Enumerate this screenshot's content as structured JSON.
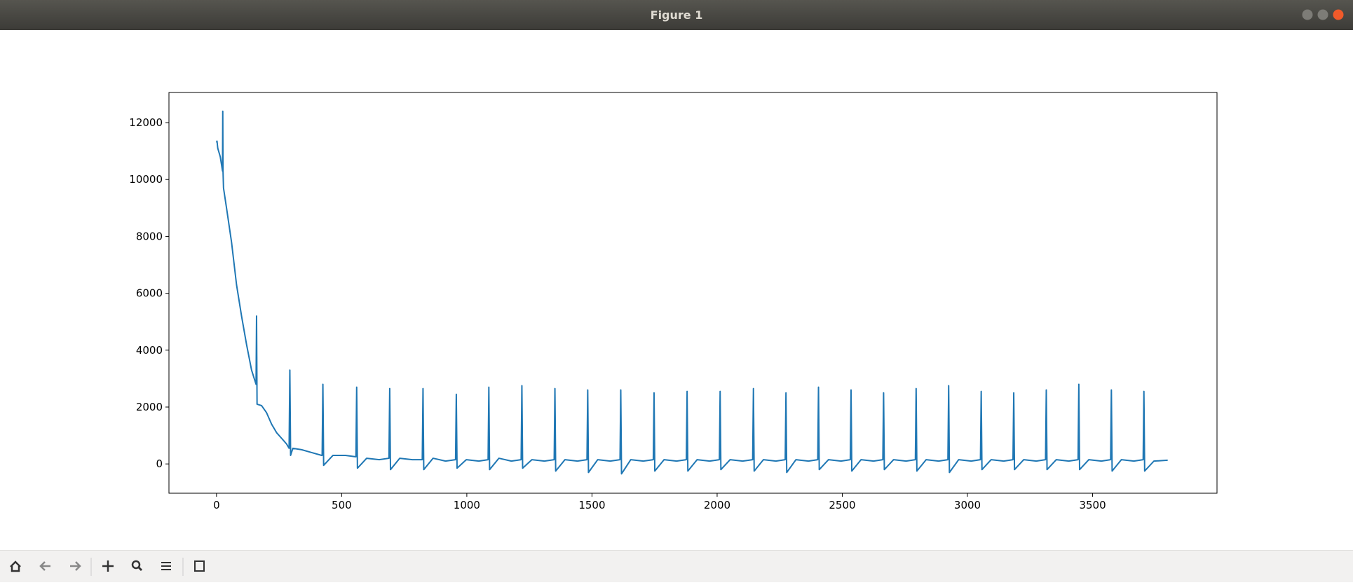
{
  "window": {
    "title": "Figure 1"
  },
  "chart_data": {
    "type": "line",
    "x": [
      0,
      2,
      5,
      15,
      24,
      25,
      26,
      28,
      40,
      60,
      80,
      100,
      120,
      140,
      158,
      160,
      162,
      180,
      200,
      220,
      240,
      260,
      280,
      290,
      293,
      296,
      305,
      340,
      380,
      420,
      422,
      425,
      428,
      465,
      515,
      557,
      560,
      563,
      600,
      650,
      689,
      692,
      695,
      732,
      782,
      822,
      825,
      828,
      865,
      915,
      955,
      958,
      961,
      998,
      1048,
      1085,
      1088,
      1091,
      1128,
      1178,
      1217,
      1220,
      1223,
      1260,
      1310,
      1349,
      1352,
      1355,
      1392,
      1442,
      1480,
      1483,
      1486,
      1523,
      1573,
      1612,
      1615,
      1618,
      1655,
      1705,
      1745,
      1748,
      1751,
      1788,
      1838,
      1877,
      1880,
      1883,
      1920,
      1970,
      2009,
      2012,
      2015,
      2052,
      2102,
      2142,
      2145,
      2148,
      2185,
      2235,
      2272,
      2275,
      2278,
      2315,
      2365,
      2402,
      2405,
      2408,
      2445,
      2495,
      2532,
      2535,
      2538,
      2575,
      2625,
      2662,
      2665,
      2668,
      2705,
      2755,
      2792,
      2795,
      2798,
      2835,
      2885,
      2922,
      2925,
      2928,
      2965,
      3015,
      3052,
      3055,
      3058,
      3095,
      3145,
      3182,
      3185,
      3188,
      3225,
      3275,
      3312,
      3315,
      3318,
      3355,
      3405,
      3442,
      3445,
      3448,
      3485,
      3535,
      3572,
      3575,
      3578,
      3615,
      3665,
      3702,
      3705,
      3708,
      3745,
      3800
    ],
    "series": [
      {
        "color": "#1f77b4",
        "values": [
          11300,
          11350,
          11100,
          10800,
          10300,
          12400,
          10300,
          9700,
          9000,
          7800,
          6300,
          5200,
          4200,
          3300,
          2800,
          5200,
          2100,
          2050,
          1800,
          1400,
          1100,
          900,
          700,
          550,
          3300,
          300,
          550,
          500,
          400,
          300,
          300,
          2800,
          -50,
          300,
          300,
          250,
          2700,
          -150,
          200,
          150,
          200,
          2650,
          -200,
          200,
          150,
          150,
          2650,
          -200,
          200,
          100,
          150,
          2450,
          -150,
          150,
          100,
          150,
          2700,
          -200,
          200,
          100,
          150,
          2750,
          -150,
          150,
          100,
          150,
          2650,
          -250,
          150,
          100,
          150,
          2600,
          -300,
          150,
          100,
          150,
          2600,
          -350,
          150,
          100,
          150,
          2500,
          -250,
          150,
          100,
          150,
          2550,
          -250,
          150,
          100,
          150,
          2550,
          -200,
          150,
          100,
          150,
          2650,
          -250,
          150,
          100,
          150,
          2500,
          -300,
          150,
          100,
          150,
          2700,
          -200,
          150,
          100,
          150,
          2600,
          -250,
          150,
          100,
          150,
          2500,
          -200,
          150,
          100,
          150,
          2650,
          -250,
          150,
          100,
          150,
          2750,
          -300,
          150,
          100,
          150,
          2550,
          -200,
          150,
          100,
          150,
          2500,
          -200,
          150,
          100,
          150,
          2600,
          -200,
          150,
          100,
          150,
          2800,
          -200,
          150,
          100,
          150,
          2600,
          -250,
          150,
          100,
          150,
          2550,
          -250,
          100,
          130
        ]
      }
    ],
    "xlim": [
      -190,
      3997
    ],
    "ylim": [
      -1030,
      13060
    ],
    "xticks": [
      0,
      500,
      1000,
      1500,
      2000,
      2500,
      3000,
      3500
    ],
    "yticks": [
      0,
      2000,
      4000,
      6000,
      8000,
      10000,
      12000
    ],
    "grid": false
  }
}
